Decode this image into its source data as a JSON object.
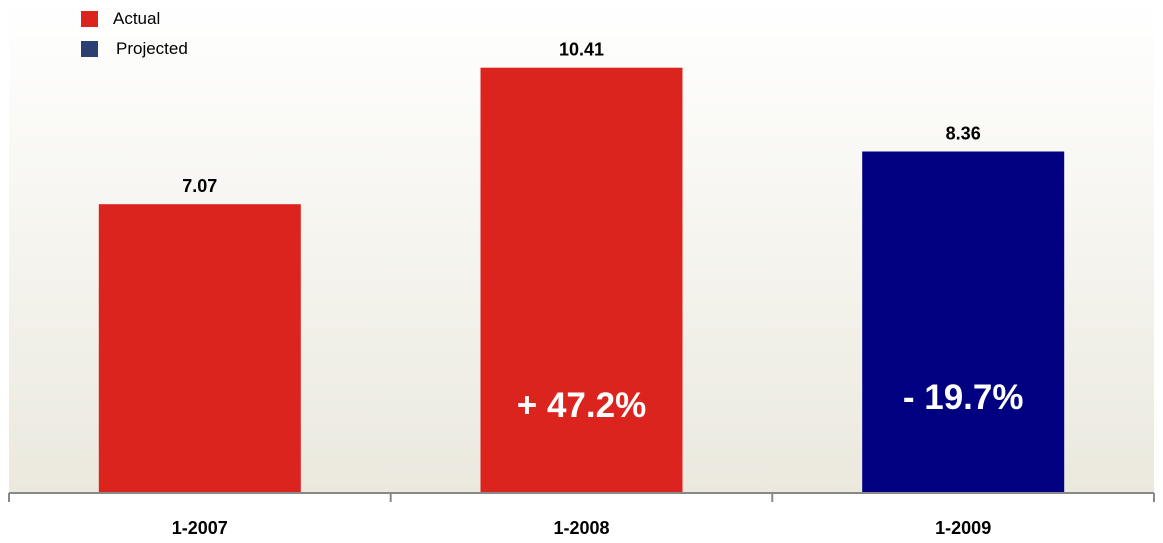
{
  "chart_data": {
    "type": "bar",
    "categories": [
      "1-2007",
      "1-2008",
      "1-2009"
    ],
    "values": [
      7.07,
      10.41,
      8.36
    ],
    "data_labels": [
      "7.07",
      "10.41",
      "8.36"
    ],
    "bar_series": [
      "Actual",
      "Actual",
      "Projected"
    ],
    "in_bar_labels": [
      "",
      "+ 47.2%",
      "- 19.7%"
    ],
    "series": [
      {
        "name": "Actual",
        "color": "#dc241f"
      },
      {
        "name": "Projected",
        "color": "#000080"
      }
    ],
    "legend_swatch_colors": [
      "#dc241f",
      "#2c3f73"
    ],
    "ylim": [
      0,
      11.26
    ],
    "grid": false,
    "legend_placement": "top-left",
    "background_gradient": [
      "#ffffff",
      "#ebe9de"
    ]
  }
}
